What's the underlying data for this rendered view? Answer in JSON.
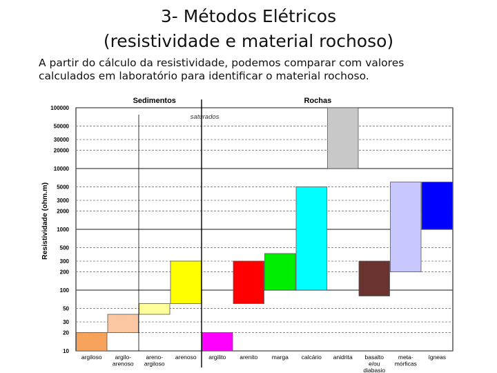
{
  "slide": {
    "title_line1": "3- Métodos Elétricos",
    "title_line2": "(resistividade e material rochoso)",
    "body_line1": "A partir do cálculo da resistividade, podemos comparar com valores",
    "body_line2": "calculados em laboratório para identificar o material rochoso."
  },
  "chart_data": {
    "type": "bar",
    "subtype": "range",
    "title": "",
    "ylabel": "Resistividade (ohm.m)",
    "yscale": "log",
    "ylim": [
      10,
      100000
    ],
    "yticks": [
      10,
      20,
      30,
      50,
      100,
      200,
      300,
      500,
      1000,
      2000,
      3000,
      5000,
      10000,
      20000,
      30000,
      50000,
      100000
    ],
    "ytick_labels": [
      "10",
      "20",
      "30",
      "50",
      "100",
      "200",
      "300",
      "500",
      "1000",
      "2000",
      "3000",
      "5000",
      "10000",
      "20000",
      "30000",
      "50000",
      "100000"
    ],
    "grid": true,
    "group_headers": [
      {
        "label": "Sedimentos"
      },
      {
        "label": "Rochas"
      }
    ],
    "annotation": "saturados",
    "categories": [
      {
        "label_lines": [
          "argiloso"
        ],
        "low": 10,
        "high": 20,
        "color": "#f7a35c"
      },
      {
        "label_lines": [
          "argilo-",
          "arenoso"
        ],
        "low": 20,
        "high": 40,
        "color": "#fbc7a0"
      },
      {
        "label_lines": [
          "areno-",
          "argiloso"
        ],
        "low": 40,
        "high": 60,
        "color": "#ffff99"
      },
      {
        "label_lines": [
          "arenoso"
        ],
        "low": 60,
        "high": 300,
        "color": "#ffff00"
      },
      {
        "label_lines": [
          "argilito"
        ],
        "low": 10,
        "high": 20,
        "color": "#ff00ff"
      },
      {
        "label_lines": [
          "arenito"
        ],
        "low": 60,
        "high": 300,
        "color": "#ff0000"
      },
      {
        "label_lines": [
          "marga"
        ],
        "low": 100,
        "high": 400,
        "color": "#00ee00"
      },
      {
        "label_lines": [
          "calcário"
        ],
        "low": 100,
        "high": 5000,
        "color": "#00ffff"
      },
      {
        "label_lines": [
          "anidrita"
        ],
        "low": 10000,
        "high": 100000,
        "color": "#c8c8c8"
      },
      {
        "label_lines": [
          "basalto",
          "e/ou",
          "diabasio"
        ],
        "low": 80,
        "high": 300,
        "color": "#6b3330"
      },
      {
        "label_lines": [
          "meta-",
          "mórficas"
        ],
        "low": 200,
        "high": 6000,
        "color": "#c8c8ff"
      },
      {
        "label_lines": [
          "ígneas"
        ],
        "low": 1000,
        "high": 6000,
        "color": "#0000ff"
      }
    ],
    "colors": {
      "gridline": "#444444",
      "gridline_minor": "#888888",
      "divider": "#000000"
    }
  }
}
